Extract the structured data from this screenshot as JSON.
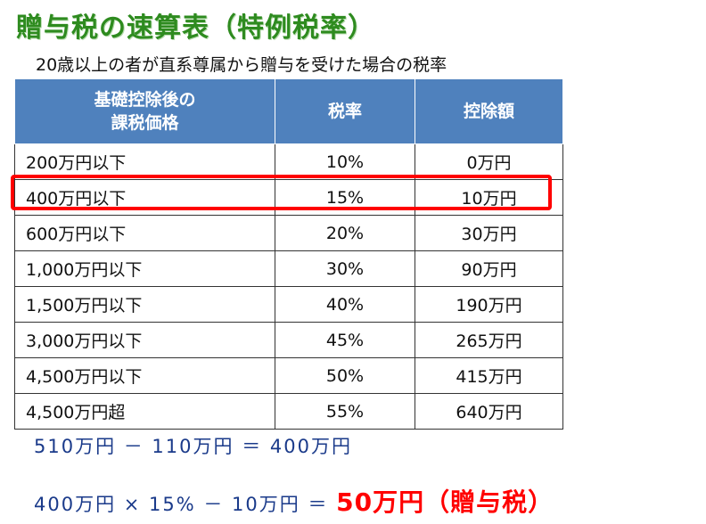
{
  "title": "贈与税の速算表（特例税率）",
  "subtitle": "20歳以上の者が直系尊属から贈与を受けた場合の税率",
  "table": {
    "headers": [
      "基礎控除後の\n課税価格",
      "税率",
      "控除額"
    ],
    "rows": [
      [
        "200万円以下",
        "10%",
        "0万円"
      ],
      [
        "400万円以下",
        "15%",
        "10万円"
      ],
      [
        "600万円以下",
        "20%",
        "30万円"
      ],
      [
        "1,000万円以下",
        "30%",
        "90万円"
      ],
      [
        "1,500万円以下",
        "40%",
        "190万円"
      ],
      [
        "3,000万円以下",
        "45%",
        "265万円"
      ],
      [
        "4,500万円以下",
        "50%",
        "415万円"
      ],
      [
        "4,500万円超",
        "55%",
        "640万円"
      ]
    ],
    "highlighted_row_index": 1
  },
  "calc1": "510万円 － 110万円 ＝ 400万円",
  "calc2": "400万円 × 15% － 10万円 ＝",
  "result": "50万円（贈与税）",
  "colors": {
    "title": "#2e8b1f",
    "header_bg": "#4f81bd",
    "highlight": "#ff0000",
    "calc_text": "#1a3a8a"
  }
}
